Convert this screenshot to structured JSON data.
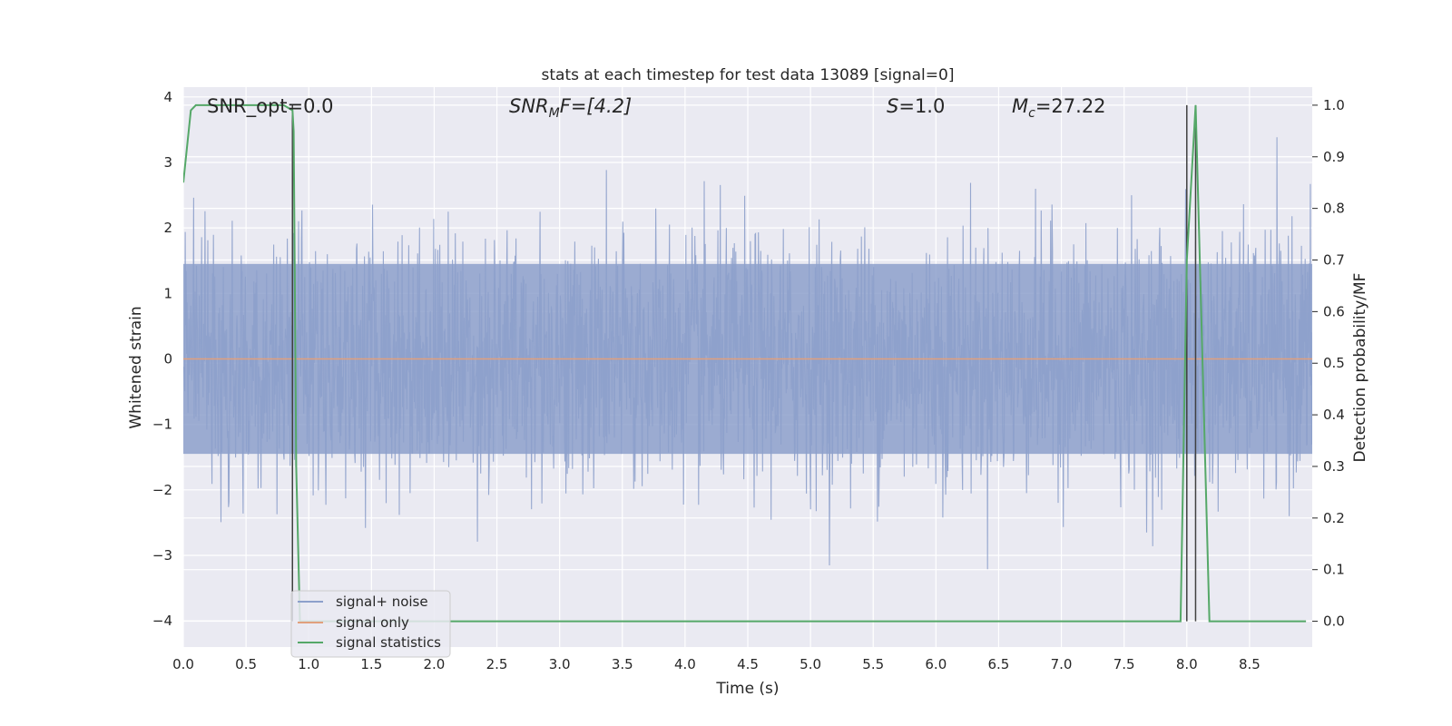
{
  "chart_data": {
    "type": "line",
    "title": "stats at each timestep for test data 13089 [signal=0]",
    "xlabel": "Time (s)",
    "ylabel": "Whitened strain",
    "y2label": "Detection probability/MF",
    "xlim": [
      0.0,
      9.0
    ],
    "ylim": [
      -4.4,
      4.15
    ],
    "y2lim": [
      -0.05,
      1.035
    ],
    "x_ticks": [
      "0.0",
      "0.5",
      "1.0",
      "1.5",
      "2.0",
      "2.5",
      "3.0",
      "3.5",
      "4.0",
      "4.5",
      "5.0",
      "5.5",
      "6.0",
      "6.5",
      "7.0",
      "7.5",
      "8.0",
      "8.5"
    ],
    "y_ticks": [
      "4",
      "3",
      "2",
      "1",
      "0",
      "−1",
      "−2",
      "−3",
      "−4"
    ],
    "y2_ticks": [
      "1.0",
      "0.9",
      "0.8",
      "0.7",
      "0.6",
      "0.5",
      "0.4",
      "0.3",
      "0.2",
      "0.1",
      "0.0"
    ],
    "grid": true,
    "legend_position": "lower-left",
    "annotations": {
      "snr_opt": "SNR_opt=0.0",
      "snr_mf_main": "SNR",
      "snr_mf_sub": "M",
      "snr_mf_rest": "F=[4.2]",
      "s_var": "S",
      "s_rest": "=1.0",
      "mc_var": "M",
      "mc_sub": "c",
      "mc_rest": "=27.22"
    },
    "series": [
      {
        "name": "signal+ noise",
        "color": "#8da0cb",
        "description_values": "gaussian whitened noise",
        "envelope": {
          "x_range": [
            0.0,
            9.0
          ],
          "typical_upper": 2.3,
          "typical_lower": -1.8,
          "max": 3.8,
          "min": -4.0
        }
      },
      {
        "name": "signal only",
        "color": "#e1a07d",
        "x": [
          0.0,
          9.0
        ],
        "y": [
          0.0,
          0.0
        ]
      },
      {
        "name": "signal statistics",
        "color": "#55a868",
        "axis": "right",
        "x": [
          0.0,
          0.06,
          0.1,
          0.15,
          0.3,
          0.5,
          0.7,
          0.8,
          0.87,
          0.88,
          0.9,
          0.93,
          1.0,
          2.0,
          3.0,
          4.0,
          5.0,
          6.0,
          7.0,
          7.9,
          7.95,
          8.0,
          8.07,
          8.12,
          8.18,
          8.25,
          8.5,
          8.95
        ],
        "y": [
          0.85,
          0.99,
          1.0,
          1.0,
          1.0,
          1.0,
          1.0,
          1.0,
          0.99,
          0.95,
          0.3,
          0.0,
          0.0,
          0.0,
          0.0,
          0.0,
          0.0,
          0.0,
          0.0,
          0.0,
          0.0,
          0.7,
          1.0,
          0.55,
          0.0,
          0.0,
          0.0,
          0.0
        ]
      }
    ],
    "vertical_lines": {
      "color": "#404040",
      "x": [
        0.87,
        8.0,
        8.07
      ]
    }
  }
}
